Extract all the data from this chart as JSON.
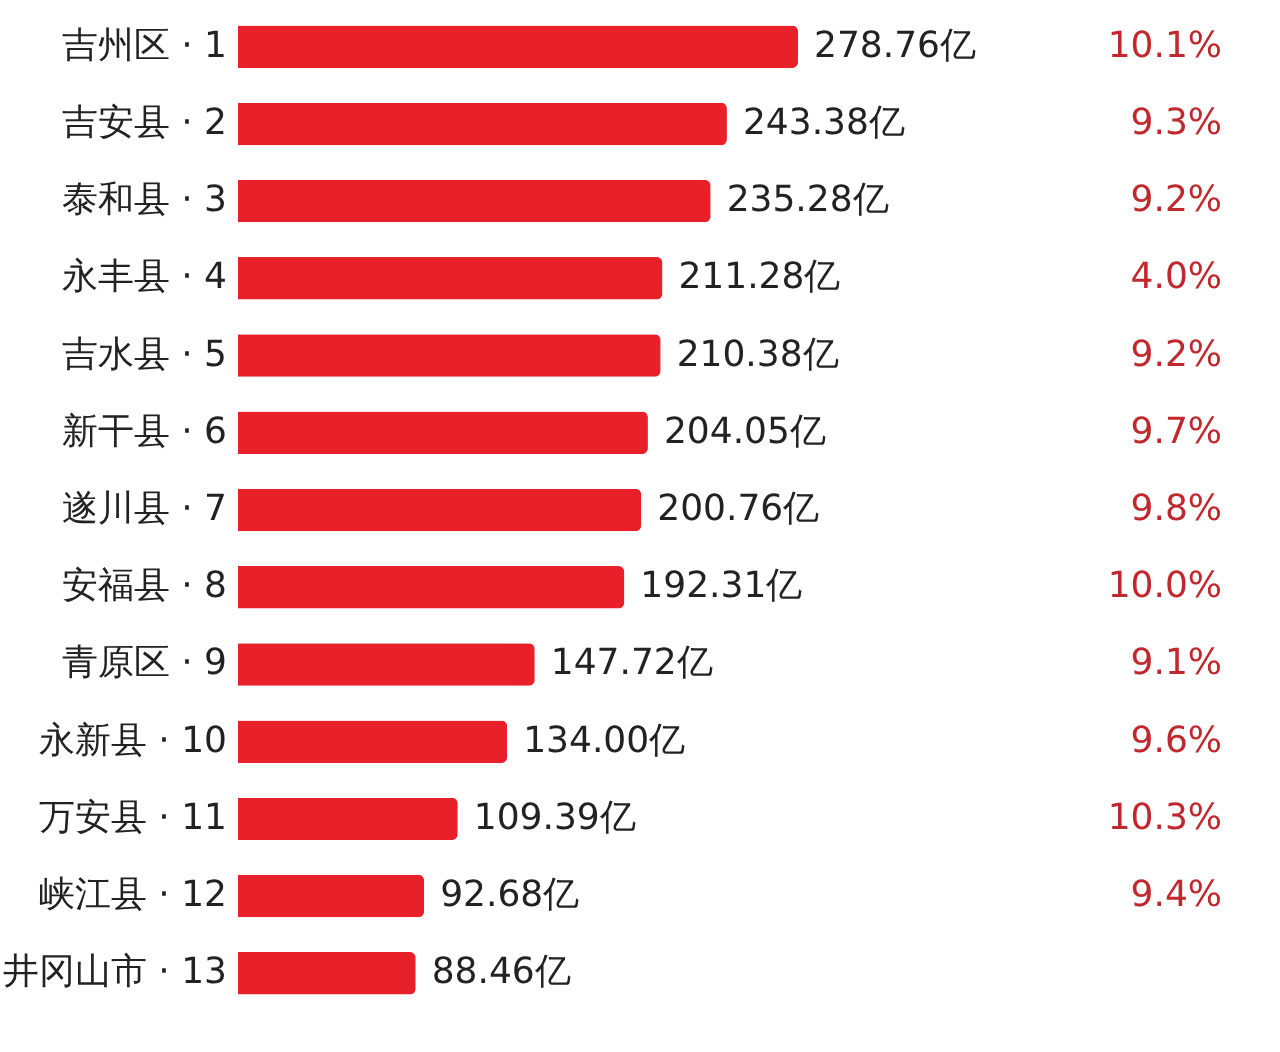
{
  "chart_data": {
    "type": "bar",
    "orientation": "horizontal",
    "categories": [
      "吉州区 · 1",
      "吉安县 · 2",
      "泰和县 · 3",
      "永丰县 · 4",
      "吉水县 · 5",
      "新干县 · 6",
      "遂川县 · 7",
      "安福县 · 8",
      "青原区 · 9",
      "永新县 · 10",
      "万安县 · 11",
      "峡江县 · 12",
      "井冈山市 · 13"
    ],
    "values": [
      278.76,
      243.38,
      235.28,
      211.28,
      210.38,
      204.05,
      200.76,
      192.31,
      147.72,
      134.0,
      109.39,
      92.68,
      88.46
    ],
    "value_labels": [
      "278.76亿",
      "243.38亿",
      "235.28亿",
      "211.28亿",
      "210.38亿",
      "204.05亿",
      "200.76亿",
      "192.31亿",
      "147.72亿",
      "134.00亿",
      "109.39亿",
      "92.68亿",
      "88.46亿"
    ],
    "color": "#e8202a",
    "annotations": [
      "10.1%",
      "9.3%",
      "9.2%",
      "4.0%",
      "9.2%",
      "9.7%",
      "9.8%",
      "10.0%",
      "9.1%",
      "9.6%",
      "10.3%",
      "9.4%"
    ]
  }
}
